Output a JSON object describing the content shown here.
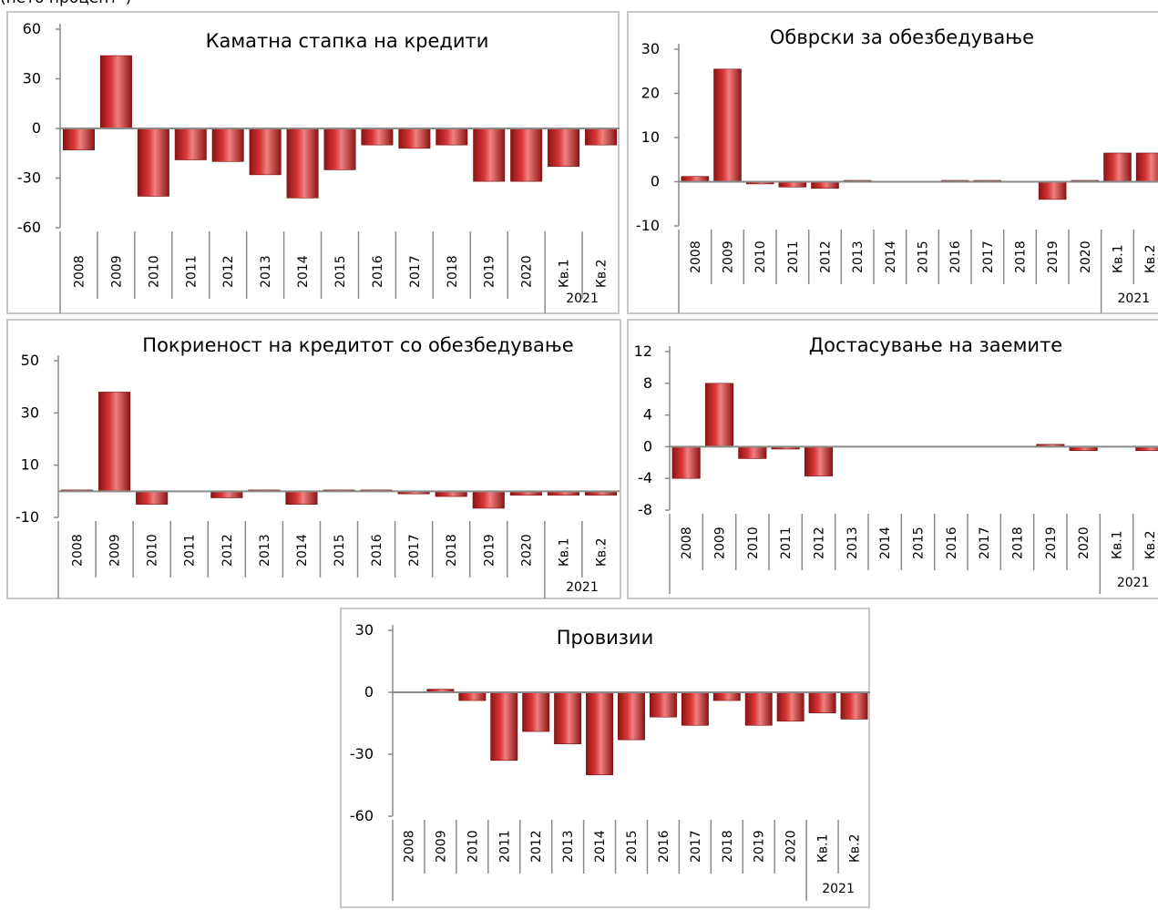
{
  "page_title": "(нето процент*)",
  "colors": {
    "bar_fill_dark": "#8c1414",
    "bar_fill_mid": "#d93636",
    "bar_fill_light": "#f08080",
    "axis": "#8a8a8a",
    "panel_border": "#c8c8c8"
  },
  "chart_data": [
    {
      "type": "bar",
      "title": "Каматна стапка на кредити",
      "xlabel": "",
      "ylabel": "",
      "categories": [
        "2008",
        "2009",
        "2010",
        "2011",
        "2012",
        "2013",
        "2014",
        "2015",
        "2016",
        "2017",
        "2018",
        "2019",
        "2020",
        "Кв.1",
        "Кв.2"
      ],
      "group_label": "2021",
      "values": [
        -13,
        44,
        -41,
        -19,
        -20,
        -28,
        -42,
        -25,
        -10,
        -12,
        -10,
        -32,
        -32,
        -23,
        -10
      ],
      "ylim": [
        -60,
        60
      ],
      "yticks": [
        "60",
        "30",
        "0",
        "-30",
        "-60"
      ],
      "grid": false,
      "legend": "none"
    },
    {
      "type": "bar",
      "title": "Обврски за обезбедување",
      "xlabel": "",
      "ylabel": "",
      "categories": [
        "2008",
        "2009",
        "2010",
        "2011",
        "2012",
        "2013",
        "2014",
        "2015",
        "2016",
        "2017",
        "2018",
        "2019",
        "2020",
        "Кв.1",
        "Кв.2"
      ],
      "group_label": "2021",
      "values": [
        1.2,
        25.5,
        -0.5,
        -1.2,
        -1.5,
        0.3,
        0,
        0,
        0.3,
        0.3,
        0,
        -4,
        0.3,
        6.5,
        6.5
      ],
      "ylim": [
        -10,
        30
      ],
      "yticks": [
        "30",
        "20",
        "10",
        "0",
        "-10"
      ],
      "grid": false,
      "legend": "none"
    },
    {
      "type": "bar",
      "title": "Покриеност на кредитот со обезбедување",
      "xlabel": "",
      "ylabel": "",
      "categories": [
        "2008",
        "2009",
        "2010",
        "2011",
        "2012",
        "2013",
        "2014",
        "2015",
        "2016",
        "2017",
        "2018",
        "2019",
        "2020",
        "Кв.1",
        "Кв.2"
      ],
      "group_label": "2021",
      "values": [
        0.5,
        38,
        -5,
        0,
        -2.5,
        0.5,
        -5,
        0.5,
        0.5,
        -1,
        -2,
        -6.5,
        -1.5,
        -1.5,
        -1.5
      ],
      "ylim": [
        -10,
        50
      ],
      "yticks": [
        "50",
        "30",
        "10",
        "-10"
      ],
      "grid": false,
      "legend": "none"
    },
    {
      "type": "bar",
      "title": "Достасување на заемите",
      "xlabel": "",
      "ylabel": "",
      "categories": [
        "2008",
        "2009",
        "2010",
        "2011",
        "2012",
        "2013",
        "2014",
        "2015",
        "2016",
        "2017",
        "2018",
        "2019",
        "2020",
        "Кв.1",
        "Кв.2"
      ],
      "group_label": "2021",
      "values": [
        -4,
        8,
        -1.5,
        -0.3,
        -3.7,
        0,
        0,
        0,
        0,
        0,
        0,
        0.3,
        -0.5,
        0,
        -0.5
      ],
      "ylim": [
        -8,
        12
      ],
      "yticks": [
        "12",
        "8",
        "4",
        "0",
        "-4",
        "-8"
      ],
      "grid": false,
      "legend": "none"
    },
    {
      "type": "bar",
      "title": "Провизии",
      "xlabel": "",
      "ylabel": "",
      "categories": [
        "2008",
        "2009",
        "2010",
        "2011",
        "2012",
        "2013",
        "2014",
        "2015",
        "2016",
        "2017",
        "2018",
        "2019",
        "2020",
        "Кв.1",
        "Кв.2"
      ],
      "group_label": "2021",
      "values": [
        0,
        1.5,
        -4,
        -33,
        -19,
        -25,
        -40,
        -23,
        -12,
        -16,
        -4,
        -16,
        -14,
        -10,
        -13
      ],
      "ylim": [
        -60,
        30
      ],
      "yticks": [
        "30",
        "0",
        "-30",
        "-60"
      ],
      "grid": false,
      "legend": "none"
    }
  ]
}
